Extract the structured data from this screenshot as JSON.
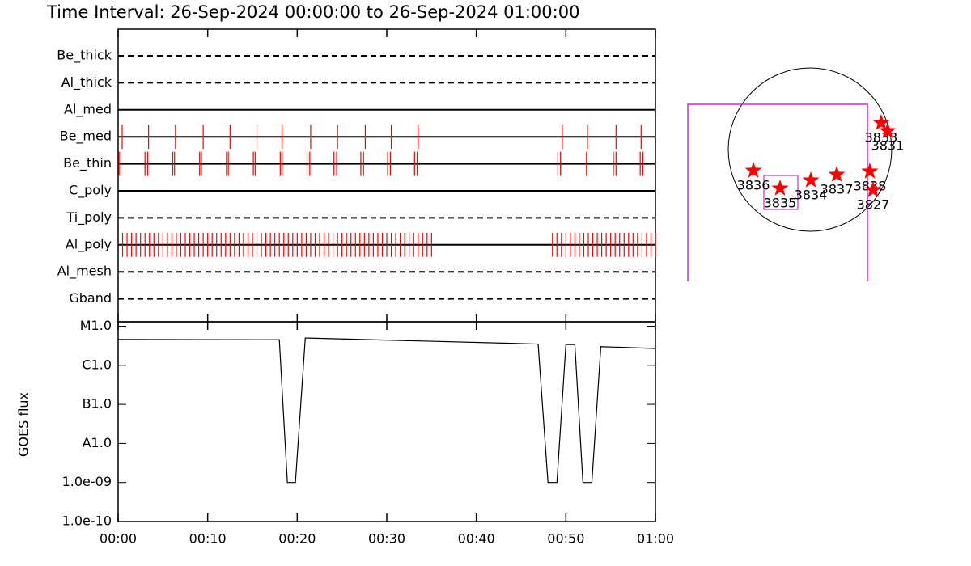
{
  "title": "Time Interval: 26-Sep-2024 00:00:00 to 26-Sep-2024 01:00:00",
  "chart_data": [
    {
      "type": "timeline",
      "xlim": [
        0,
        60
      ],
      "event_color": "#ff0000",
      "rows": [
        {
          "name": "Be_thick",
          "style": "dashed",
          "events": []
        },
        {
          "name": "Al_thick",
          "style": "dashed",
          "events": []
        },
        {
          "name": "Al_med",
          "style": "solid",
          "events": []
        },
        {
          "name": "Be_med",
          "style": "solid",
          "events": [
            0.45,
            3.4,
            6.4,
            9.5,
            12.5,
            15.5,
            18.3,
            21.5,
            24.5,
            27.6,
            30.5,
            33.5,
            49.6,
            52.4,
            55.6,
            58.4
          ]
        },
        {
          "name": "Be_thin",
          "style": "solid",
          "events": [
            0.1,
            0.3,
            3.0,
            3.3,
            6.1,
            6.3,
            9.1,
            9.3,
            12.1,
            12.3,
            15.1,
            15.3,
            18.1,
            18.3,
            21.1,
            21.4,
            24.1,
            24.4,
            27.1,
            27.4,
            30.1,
            30.4,
            33.1,
            33.4,
            49.1,
            49.4,
            52.3,
            55.3,
            55.6,
            58.3,
            58.6
          ]
        },
        {
          "name": "C_poly",
          "style": "solid",
          "events": []
        },
        {
          "name": "Ti_poly",
          "style": "dashed",
          "events": []
        },
        {
          "name": "Al_poly",
          "style": "solid",
          "events": [
            0.5,
            1.0,
            1.5,
            2.0,
            2.5,
            3.0,
            3.5,
            4.0,
            4.5,
            5.0,
            5.5,
            6.0,
            6.5,
            7.0,
            7.5,
            8.0,
            8.5,
            9.0,
            9.5,
            10.0,
            10.5,
            11.0,
            11.5,
            12.0,
            12.5,
            13.0,
            13.5,
            14.0,
            14.5,
            15.0,
            15.5,
            16.0,
            16.5,
            17.0,
            17.5,
            18.0,
            18.5,
            19.0,
            19.5,
            20.0,
            20.5,
            21.0,
            21.5,
            22.0,
            22.5,
            23.0,
            23.5,
            24.0,
            24.5,
            25.0,
            25.5,
            26.0,
            26.5,
            27.0,
            27.5,
            28.0,
            28.5,
            29.0,
            29.5,
            30.0,
            30.5,
            31.0,
            31.5,
            32.0,
            32.5,
            33.0,
            33.5,
            34.0,
            34.5,
            35.0,
            48.5,
            49.0,
            49.5,
            50.0,
            50.5,
            51.0,
            51.5,
            52.0,
            52.5,
            53.0,
            53.5,
            54.0,
            54.5,
            55.0,
            55.5,
            56.0,
            56.5,
            57.0,
            57.5,
            58.0,
            58.5,
            59.0,
            59.5,
            60.0
          ]
        },
        {
          "name": "Al_mesh",
          "style": "dashed",
          "events": []
        },
        {
          "name": "Gband",
          "style": "dashed",
          "events": []
        }
      ]
    },
    {
      "type": "line",
      "ylabel": "GOES flux",
      "log_y": true,
      "color": "#000000",
      "xlim": [
        0,
        60
      ],
      "xticks": [
        {
          "value": 0,
          "label": "00:00"
        },
        {
          "value": 10,
          "label": "00:10"
        },
        {
          "value": 20,
          "label": "00:20"
        },
        {
          "value": 30,
          "label": "00:30"
        },
        {
          "value": 40,
          "label": "00:40"
        },
        {
          "value": 50,
          "label": "00:50"
        },
        {
          "value": 60,
          "label": "01:00"
        }
      ],
      "ylim": [
        1e-10,
        1.3e-05
      ],
      "yticks": [
        {
          "value": 1e-10,
          "label": "1.0e-10"
        },
        {
          "value": 1e-09,
          "label": "1.0e-09"
        },
        {
          "value": 1e-08,
          "label": "A1.0"
        },
        {
          "value": 1e-07,
          "label": "B1.0"
        },
        {
          "value": 1e-06,
          "label": "C1.0"
        },
        {
          "value": 1e-05,
          "label": "M1.0"
        }
      ],
      "x": [
        0,
        18.0,
        18.9,
        19.8,
        20.9,
        46.9,
        48.0,
        49.0,
        50.0,
        51.0,
        51.9,
        52.9,
        53.9,
        60
      ],
      "values": [
        4.6e-06,
        4.5e-06,
        1e-09,
        1e-09,
        5e-06,
        3.5e-06,
        1e-09,
        1e-09,
        3.4e-06,
        3.4e-06,
        1e-09,
        1e-09,
        3e-06,
        2.7e-06
      ]
    },
    {
      "type": "map",
      "xlim": [
        -1502,
        1502
      ],
      "ylim": [
        -1502,
        1502
      ],
      "rsun": 960,
      "star_color": "#ff0000",
      "fov_color": "#e020e0",
      "fov": {
        "x": [
          -1435,
          675
        ],
        "y": [
          -1549,
          532
        ]
      },
      "box": {
        "x": [
          -542,
          -143
        ],
        "y": [
          -703,
          -304
        ]
      },
      "regions": [
        "3836",
        "3835",
        "3834",
        "3837",
        "3838",
        "3827",
        "3833",
        "3831"
      ],
      "x": [
        -665,
        -352,
        10,
        314,
        703,
        741,
        836,
        912
      ],
      "y": [
        -247,
        -456,
        -361,
        -295,
        -257,
        -475,
        314,
        219
      ]
    }
  ]
}
